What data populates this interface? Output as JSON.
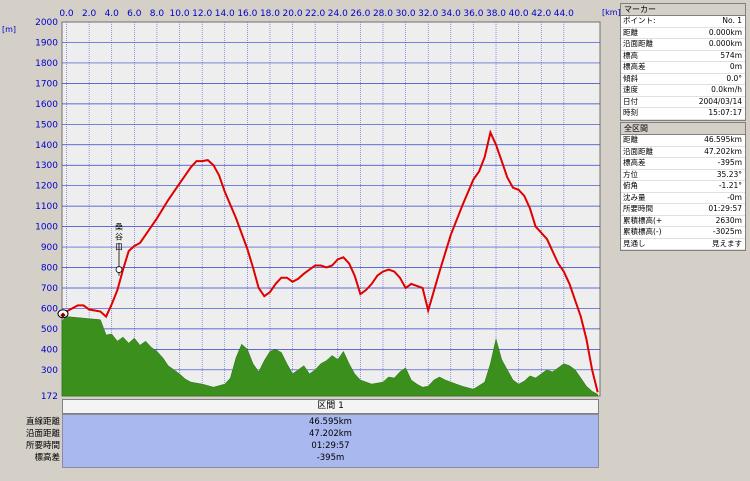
{
  "chart_data": {
    "type": "area",
    "x_unit": "[km]",
    "y_unit": "[m]",
    "xlim": [
      -0.4,
      47.2
    ],
    "ylim": [
      172,
      2000
    ],
    "x_ticks": [
      "0.0",
      "2.0",
      "4.0",
      "6.0",
      "8.0",
      "10.0",
      "12.0",
      "14.0",
      "16.0",
      "18.0",
      "20.0",
      "22.0",
      "24.0",
      "26.0",
      "28.0",
      "30.0",
      "32.0",
      "34.0",
      "36.0",
      "38.0",
      "40.0",
      "42.0",
      "44.0"
    ],
    "x_tick_values": [
      0,
      2,
      4,
      6,
      8,
      10,
      12,
      14,
      16,
      18,
      20,
      22,
      24,
      26,
      28,
      30,
      32,
      34,
      36,
      38,
      40,
      42,
      44
    ],
    "y_ticks": [
      "2000",
      "1900",
      "1800",
      "1700",
      "1600",
      "1500",
      "1400",
      "1300",
      "1200",
      "1100",
      "1000",
      "900",
      "800",
      "700",
      "600",
      "500",
      "400",
      "300",
      "172"
    ],
    "y_tick_values": [
      2000,
      1900,
      1800,
      1700,
      1600,
      1500,
      1400,
      1300,
      1200,
      1100,
      1000,
      900,
      800,
      700,
      600,
      500,
      400,
      300,
      172
    ],
    "grid": true,
    "series": [
      {
        "color": "#e00000",
        "x": [
          -0.4,
          0.5,
          1.0,
          1.5,
          2.0,
          2.5,
          3.0,
          3.5,
          4.0,
          4.5,
          5.0,
          5.5,
          6.0,
          6.5,
          7.0,
          7.5,
          8.0,
          9.0,
          10.0,
          10.5,
          11.0,
          11.5,
          12.0,
          12.5,
          13.0,
          13.5,
          14.0,
          15.0,
          16.0,
          16.5,
          17.0,
          17.5,
          18.0,
          18.5,
          19.0,
          19.5,
          20.0,
          20.5,
          21.0,
          21.5,
          22.0,
          22.5,
          23.0,
          23.5,
          24.0,
          24.5,
          25.0,
          25.5,
          26.0,
          26.5,
          27.0,
          27.5,
          28.0,
          28.5,
          29.0,
          29.5,
          30.0,
          30.5,
          31.0,
          31.5,
          32.0,
          33.0,
          34.0,
          35.0,
          36.0,
          36.5,
          37.0,
          37.5,
          38.0,
          38.5,
          39.0,
          39.5,
          40.0,
          40.5,
          41.0,
          41.5,
          42.0,
          42.5,
          43.0,
          43.5,
          44.0,
          44.5,
          45.0,
          45.5,
          46.0,
          46.5,
          47.0
        ],
        "values": [
          574,
          600,
          615,
          615,
          595,
          590,
          585,
          560,
          620,
          690,
          790,
          880,
          905,
          920,
          960,
          1000,
          1040,
          1130,
          1210,
          1250,
          1290,
          1320,
          1320,
          1325,
          1300,
          1250,
          1170,
          1040,
          890,
          800,
          700,
          660,
          680,
          720,
          750,
          750,
          730,
          745,
          770,
          790,
          810,
          810,
          800,
          810,
          840,
          850,
          820,
          760,
          670,
          690,
          720,
          760,
          780,
          790,
          780,
          750,
          700,
          720,
          710,
          700,
          590,
          780,
          960,
          1100,
          1230,
          1270,
          1340,
          1460,
          1400,
          1320,
          1240,
          1190,
          1180,
          1150,
          1090,
          1000,
          970,
          940,
          880,
          820,
          780,
          720,
          640,
          560,
          450,
          300,
          190
        ]
      },
      {
        "color": "#3a8f1d",
        "x": [
          -0.4,
          0.0,
          1.0,
          2.0,
          3.0,
          3.5,
          4.0,
          4.5,
          5.0,
          5.5,
          6.0,
          6.5,
          7.0,
          7.5,
          8.0,
          8.5,
          9.0,
          9.5,
          10.0,
          10.5,
          11.0,
          11.5,
          12.0,
          13.0,
          14.0,
          14.5,
          15.0,
          15.5,
          16.0,
          16.5,
          17.0,
          17.5,
          18.0,
          18.5,
          19.0,
          19.5,
          20.0,
          20.5,
          21.0,
          21.5,
          22.0,
          22.5,
          23.0,
          23.5,
          24.0,
          24.5,
          25.0,
          25.5,
          26.0,
          27.0,
          28.0,
          28.5,
          29.0,
          29.5,
          30.0,
          30.5,
          31.0,
          31.5,
          32.0,
          32.5,
          33.0,
          33.5,
          34.0,
          35.0,
          36.0,
          37.0,
          37.5,
          38.0,
          38.5,
          39.0,
          39.5,
          40.0,
          40.5,
          41.0,
          41.5,
          42.0,
          42.5,
          43.0,
          43.5,
          44.0,
          44.5,
          45.0,
          45.5,
          46.0,
          46.5,
          47.0
        ],
        "values": [
          540,
          560,
          555,
          550,
          545,
          470,
          475,
          440,
          460,
          430,
          455,
          420,
          440,
          410,
          390,
          360,
          320,
          300,
          280,
          255,
          240,
          235,
          230,
          215,
          230,
          260,
          360,
          425,
          400,
          330,
          290,
          345,
          390,
          400,
          385,
          330,
          280,
          300,
          320,
          280,
          300,
          330,
          345,
          370,
          350,
          390,
          330,
          280,
          250,
          230,
          240,
          265,
          260,
          290,
          310,
          250,
          230,
          215,
          220,
          250,
          265,
          250,
          240,
          220,
          205,
          240,
          330,
          450,
          350,
          300,
          250,
          230,
          245,
          270,
          260,
          280,
          300,
          290,
          310,
          330,
          320,
          300,
          260,
          220,
          195,
          180
        ]
      }
    ]
  },
  "annotations": {
    "start_marker": "◆",
    "point_label": "桑谷口"
  },
  "marker_panel": {
    "title": "マーカー",
    "rows": [
      {
        "k": "ポイント:",
        "v": "No. 1"
      },
      {
        "k": "距離",
        "v": "0.000km"
      },
      {
        "k": "沿面距離",
        "v": "0.000km"
      },
      {
        "k": "標高",
        "v": "574m"
      },
      {
        "k": "標高差",
        "v": "0m"
      },
      {
        "k": "傾斜",
        "v": "0.0°"
      },
      {
        "k": "速度",
        "v": "0.0km/h"
      },
      {
        "k": "日付",
        "v": "2004/03/14"
      },
      {
        "k": "時刻",
        "v": "15:07:17"
      }
    ]
  },
  "section_panel": {
    "title": "全区間",
    "rows": [
      {
        "k": "距離",
        "v": "46.595km"
      },
      {
        "k": "沿面距離",
        "v": "47.202km"
      },
      {
        "k": "標高差",
        "v": "-395m"
      },
      {
        "k": "方位",
        "v": "35.23°"
      },
      {
        "k": "俯角",
        "v": "-1.21°"
      },
      {
        "k": "沈み量",
        "v": "-0m"
      },
      {
        "k": "所要時間",
        "v": "01:29:57"
      },
      {
        "k": "累積標高(+)",
        "v": "2630m"
      },
      {
        "k": "累積標高(-)",
        "v": "-3025m"
      },
      {
        "k": "見通し",
        "v": "見えます"
      }
    ]
  },
  "section_bar": {
    "header": "区間 1",
    "labels": [
      "直線距離",
      "沿面距離",
      "所要時間",
      "標高差"
    ],
    "values": [
      "46.595km",
      "47.202km",
      "01:29:57",
      "-395m"
    ]
  }
}
